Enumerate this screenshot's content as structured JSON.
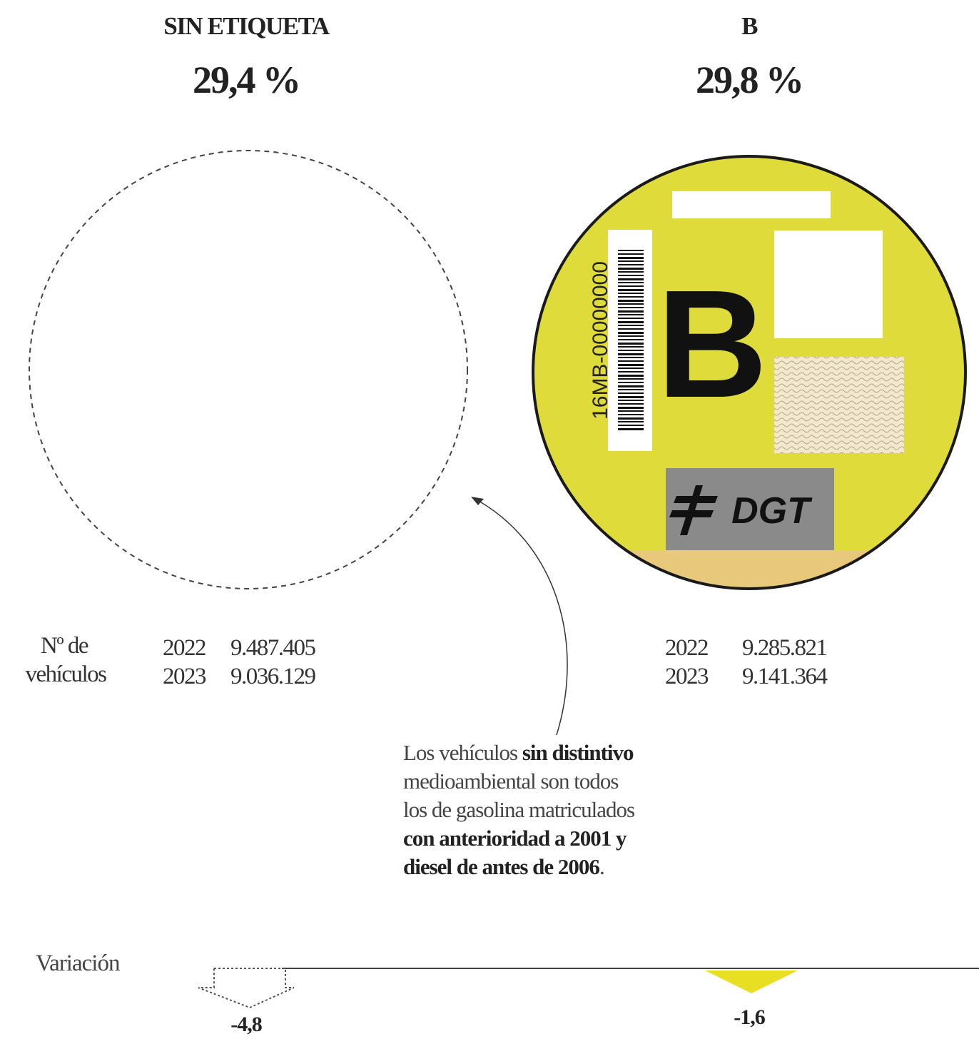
{
  "columns": [
    {
      "label": "SIN ETIQUETA",
      "share": "29,4 %",
      "rows": [
        {
          "year": "2022",
          "count": "9.487.405"
        },
        {
          "year": "2023",
          "count": "9.036.129"
        }
      ],
      "variation": "-4,8"
    },
    {
      "label": "B",
      "share": "29,8 %",
      "rows": [
        {
          "year": "2022",
          "count": "9.285.821"
        },
        {
          "year": "2023",
          "count": "9.141.364"
        }
      ],
      "variation": "-1,6"
    }
  ],
  "vehicles_label": [
    "Nº de",
    "vehículos"
  ],
  "sticker": {
    "letter": "B",
    "code": "16MB-00000000",
    "brand": "DGT"
  },
  "note": {
    "lines": [
      [
        {
          "text": "Los vehículos ",
          "bold": false
        },
        {
          "text": "sin distintivo",
          "bold": true
        }
      ],
      [
        {
          "text": "medioambiental son todos",
          "bold": false
        }
      ],
      [
        {
          "text": "los de gasolina matriculados",
          "bold": false
        }
      ],
      [
        {
          "text": "con anterioridad a 2001 y",
          "bold": true
        }
      ],
      [
        {
          "text": "diesel de antes de 2006",
          "bold": true
        },
        {
          "text": ".",
          "bold": false
        }
      ]
    ]
  },
  "variation_label": "Variación"
}
